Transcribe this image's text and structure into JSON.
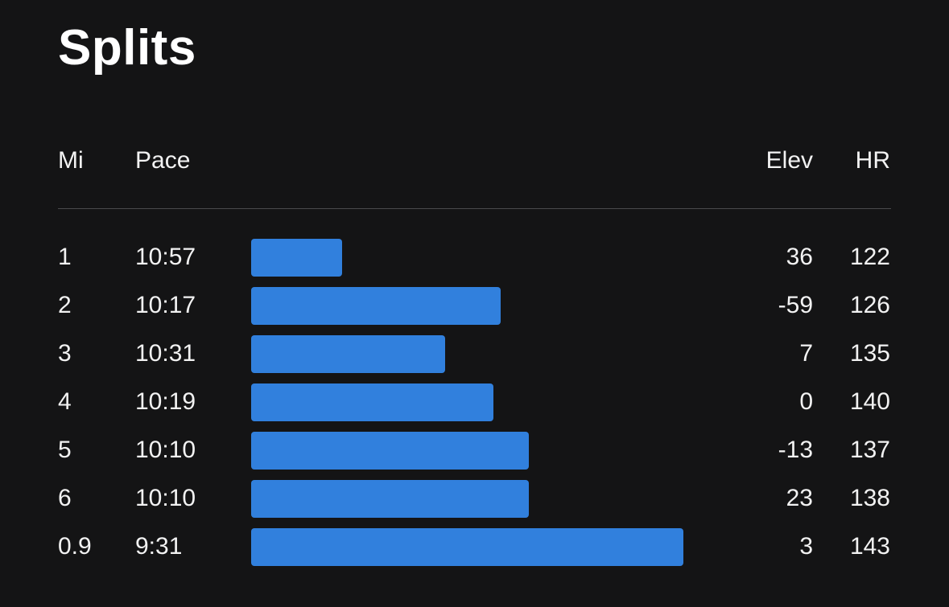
{
  "title": "Splits",
  "columns": {
    "mi": "Mi",
    "pace": "Pace",
    "elev": "Elev",
    "hr": "HR"
  },
  "colors": {
    "background": "#141415",
    "bar": "#3180dd",
    "text": "#ffffff",
    "divider": "#4a4a4c"
  },
  "splits": [
    {
      "mi": "1",
      "pace": "10:57",
      "elev": "36",
      "hr": "122"
    },
    {
      "mi": "2",
      "pace": "10:17",
      "elev": "-59",
      "hr": "126"
    },
    {
      "mi": "3",
      "pace": "10:31",
      "elev": "7",
      "hr": "135"
    },
    {
      "mi": "4",
      "pace": "10:19",
      "elev": "0",
      "hr": "140"
    },
    {
      "mi": "5",
      "pace": "10:10",
      "elev": "-13",
      "hr": "137"
    },
    {
      "mi": "6",
      "pace": "10:10",
      "elev": "23",
      "hr": "138"
    },
    {
      "mi": "0.9",
      "pace": "9:31",
      "elev": "3",
      "hr": "143"
    }
  ]
}
